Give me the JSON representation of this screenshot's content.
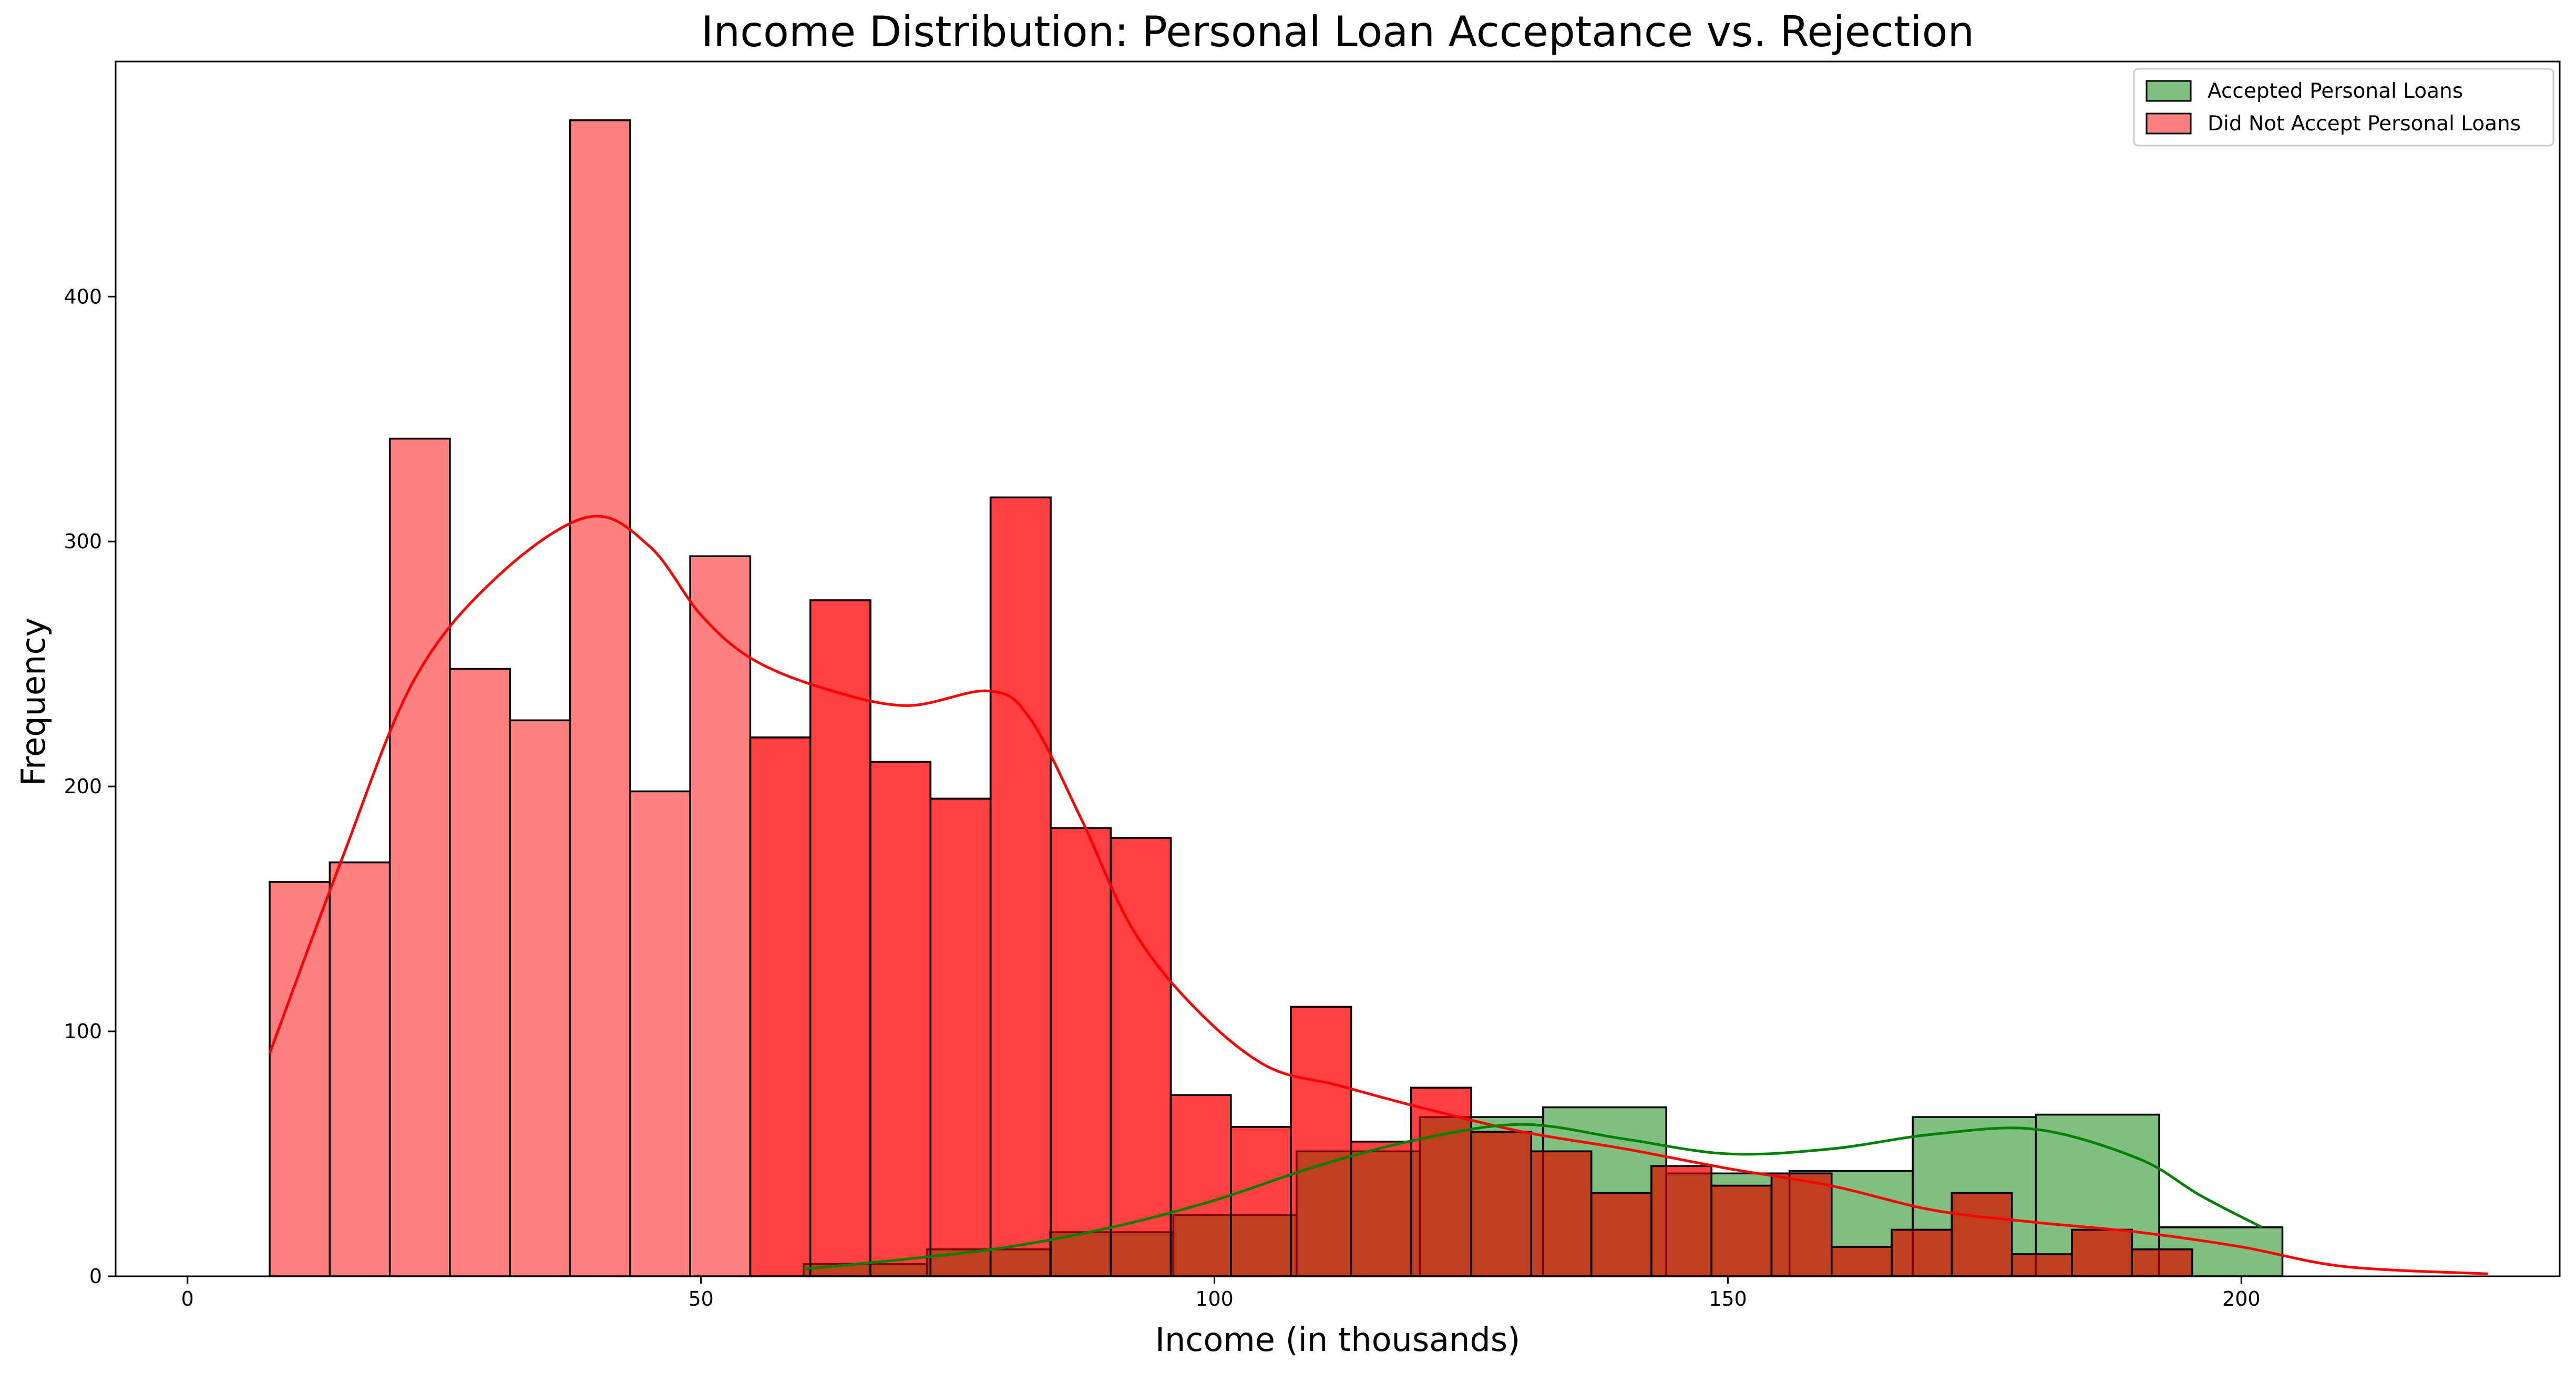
{
  "chart_data": {
    "type": "bar",
    "title": "Income Distribution: Personal Loan Acceptance vs. Rejection",
    "xlabel": "Income (in thousands)",
    "ylabel": "Frequency",
    "xlim": [
      -7,
      231
    ],
    "ylim": [
      0,
      496
    ],
    "x_ticks": [
      0,
      50,
      100,
      150,
      200
    ],
    "y_ticks": [
      0,
      100,
      200,
      300,
      400
    ],
    "grid": false,
    "legend_position": "top-right",
    "colors": {
      "accepted_fill": "#7fbf7f",
      "rejected_fill": "#ff8080",
      "overlap_fill": "#bf5f3f",
      "accepted_line": "#008000",
      "rejected_line": "#ff0000",
      "edge": "#000000"
    },
    "series": [
      {
        "name": "Accepted Personal Loans",
        "color": "#008000",
        "bin_edges": [
          60,
          72,
          84,
          96,
          108,
          120,
          132,
          144,
          156,
          168,
          180,
          192,
          204
        ],
        "values": [
          5,
          11,
          18,
          25,
          51,
          65,
          69,
          42,
          43,
          65,
          66,
          20
        ],
        "kde_x": [
          60,
          70,
          80,
          90,
          100,
          110,
          120,
          130,
          140,
          150,
          160,
          170,
          180,
          190,
          196,
          202
        ],
        "kde_y": [
          3,
          7,
          12,
          20,
          31,
          45,
          56,
          62,
          56,
          50,
          52,
          58,
          60,
          48,
          33,
          20
        ]
      },
      {
        "name": "Did Not Accept Personal Loans",
        "color": "#ff0000",
        "bin_edges": [
          8,
          13.85,
          19.7,
          25.55,
          31.4,
          37.25,
          43.1,
          48.95,
          54.8,
          60.65,
          66.5,
          72.35,
          78.2,
          84.05,
          89.9,
          95.75,
          101.6,
          107.45,
          113.3,
          119.15,
          125,
          130.85,
          136.7,
          142.55,
          148.4,
          154.25,
          160.1,
          165.95,
          171.8,
          177.65,
          183.5,
          189.35,
          195.2,
          201.05,
          206.9,
          212.75,
          218.6,
          224.45
        ],
        "values": [
          161,
          169,
          342,
          248,
          227,
          472,
          198,
          294,
          220,
          276,
          210,
          195,
          318,
          183,
          179,
          74,
          61,
          110,
          55,
          77,
          59,
          51,
          34,
          45,
          37,
          42,
          12,
          19,
          34,
          9,
          19,
          11,
          0,
          0,
          0,
          0,
          0
        ],
        "kde_x": [
          8,
          15,
          22,
          30,
          39,
          45,
          50,
          55,
          62,
          70,
          78,
          82,
          87,
          92,
          98,
          105,
          112,
          120,
          130,
          140,
          150,
          160,
          170,
          180,
          190,
          200,
          210,
          224
        ],
        "kde_y": [
          91,
          170,
          243,
          285,
          310,
          298,
          270,
          252,
          240,
          233,
          239,
          228,
          187,
          142,
          110,
          86,
          78,
          69,
          59,
          52,
          44,
          37,
          27,
          22,
          18,
          12,
          4,
          1
        ]
      }
    ]
  }
}
